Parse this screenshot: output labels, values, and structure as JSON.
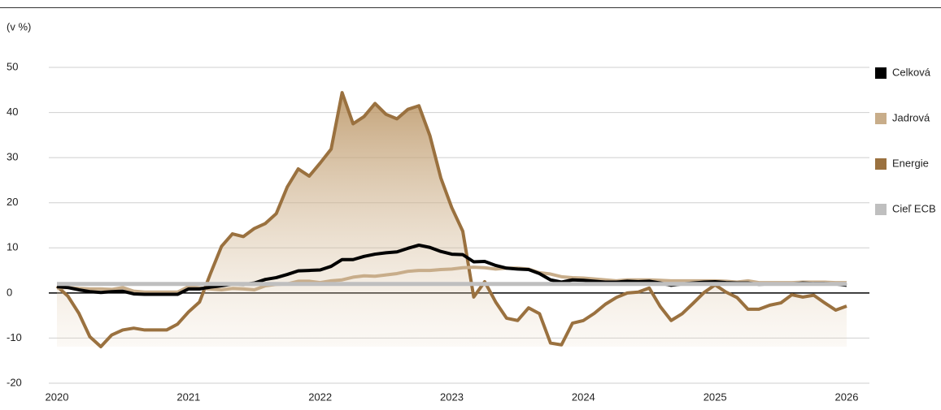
{
  "chart_data": {
    "type": "line",
    "y_axis_label": "(v %)",
    "categories": [
      "2020",
      null,
      null,
      null,
      null,
      null,
      null,
      null,
      null,
      null,
      null,
      null,
      "2021",
      null,
      null,
      null,
      null,
      null,
      null,
      null,
      null,
      null,
      null,
      null,
      "2022",
      null,
      null,
      null,
      null,
      null,
      null,
      null,
      null,
      null,
      null,
      null,
      "2023",
      null,
      null,
      null,
      null,
      null,
      null,
      null,
      null,
      null,
      null,
      null,
      "2024",
      null,
      null,
      null,
      null,
      null,
      null,
      null,
      null,
      null,
      null,
      null,
      "2025",
      null,
      null,
      null,
      null,
      null,
      null,
      null,
      null,
      null,
      null,
      null,
      "2026"
    ],
    "series": [
      {
        "name": "Celková",
        "color": "#000000",
        "values": [
          1.4,
          1.2,
          0.7,
          0.3,
          0.1,
          0.3,
          0.4,
          -0.2,
          -0.3,
          -0.3,
          -0.3,
          -0.3,
          0.9,
          0.9,
          1.3,
          1.6,
          2.0,
          1.9,
          2.2,
          3.0,
          3.4,
          4.1,
          4.9,
          5.0,
          5.1,
          5.9,
          7.4,
          7.4,
          8.1,
          8.6,
          8.9,
          9.1,
          9.9,
          10.6,
          10.1,
          9.2,
          8.6,
          8.5,
          6.9,
          7.0,
          6.1,
          5.5,
          5.3,
          5.2,
          4.3,
          2.9,
          2.4,
          2.9,
          2.8,
          2.6,
          2.4,
          2.4,
          2.6,
          2.5,
          2.6,
          2.2,
          1.7,
          2.0,
          2.2,
          2.4,
          2.5,
          2.3,
          2.2,
          2.2,
          1.9,
          2.0,
          2.0,
          2.0,
          2.2,
          2.1,
          2.1,
          2.0,
          1.7
        ]
      },
      {
        "name": "Jadrová",
        "color": "#c8ad8a",
        "values": [
          1.1,
          1.2,
          1.0,
          0.9,
          0.9,
          0.8,
          1.2,
          0.4,
          0.2,
          0.2,
          0.2,
          0.2,
          1.4,
          1.1,
          0.9,
          0.7,
          1.0,
          0.9,
          0.7,
          1.6,
          1.9,
          2.0,
          2.6,
          2.6,
          2.3,
          2.7,
          2.9,
          3.5,
          3.8,
          3.7,
          4.0,
          4.3,
          4.8,
          5.0,
          5.0,
          5.2,
          5.3,
          5.6,
          5.7,
          5.6,
          5.3,
          5.5,
          5.5,
          5.3,
          4.5,
          4.2,
          3.6,
          3.4,
          3.3,
          3.1,
          2.9,
          2.7,
          2.9,
          2.9,
          2.9,
          2.8,
          2.7,
          2.7,
          2.7,
          2.7,
          2.7,
          2.6,
          2.4,
          2.7,
          2.3,
          2.3,
          2.3,
          2.3,
          2.4,
          2.4,
          2.4,
          2.3,
          2.3
        ]
      },
      {
        "name": "Energie",
        "color": "#9a713f",
        "area": true,
        "values": [
          1.5,
          -0.7,
          -4.5,
          -9.7,
          -11.9,
          -9.3,
          -8.2,
          -7.8,
          -8.2,
          -8.2,
          -8.2,
          -6.9,
          -4.2,
          -2.0,
          4.3,
          10.3,
          13.1,
          12.5,
          14.3,
          15.4,
          17.6,
          23.5,
          27.5,
          25.9,
          28.8,
          31.9,
          44.4,
          37.5,
          39.1,
          42.0,
          39.6,
          38.6,
          40.7,
          41.5,
          34.9,
          25.5,
          18.9,
          13.7,
          -0.9,
          2.5,
          -2.0,
          -5.6,
          -6.1,
          -3.3,
          -4.6,
          -11.1,
          -11.5,
          -6.7,
          -6.1,
          -4.5,
          -2.5,
          -1.0,
          0.0,
          0.2,
          1.1,
          -3.0,
          -6.1,
          -4.6,
          -2.3,
          0.1,
          1.8,
          0.2,
          -1.0,
          -3.6,
          -3.6,
          -2.7,
          -2.2,
          -0.4,
          -0.9,
          -0.5,
          -2.2,
          -3.8,
          -2.9
        ]
      },
      {
        "name": "Cieľ ECB",
        "color": "#bfbfbf",
        "values": [
          2,
          2,
          2,
          2,
          2,
          2,
          2,
          2,
          2,
          2,
          2,
          2,
          2,
          2,
          2,
          2,
          2,
          2,
          2,
          2,
          2,
          2,
          2,
          2,
          2,
          2,
          2,
          2,
          2,
          2,
          2,
          2,
          2,
          2,
          2,
          2,
          2,
          2,
          2,
          2,
          2,
          2,
          2,
          2,
          2,
          2,
          2,
          2,
          2,
          2,
          2,
          2,
          2,
          2,
          2,
          2,
          2,
          2,
          2,
          2,
          2,
          2,
          2,
          2,
          2,
          2,
          2,
          2,
          2,
          2,
          2,
          2,
          2
        ]
      }
    ],
    "ylim": [
      -20,
      50
    ],
    "yticks": [
      -20,
      -10,
      0,
      10,
      20,
      30,
      40,
      50
    ],
    "grid": true,
    "legend": "right"
  }
}
